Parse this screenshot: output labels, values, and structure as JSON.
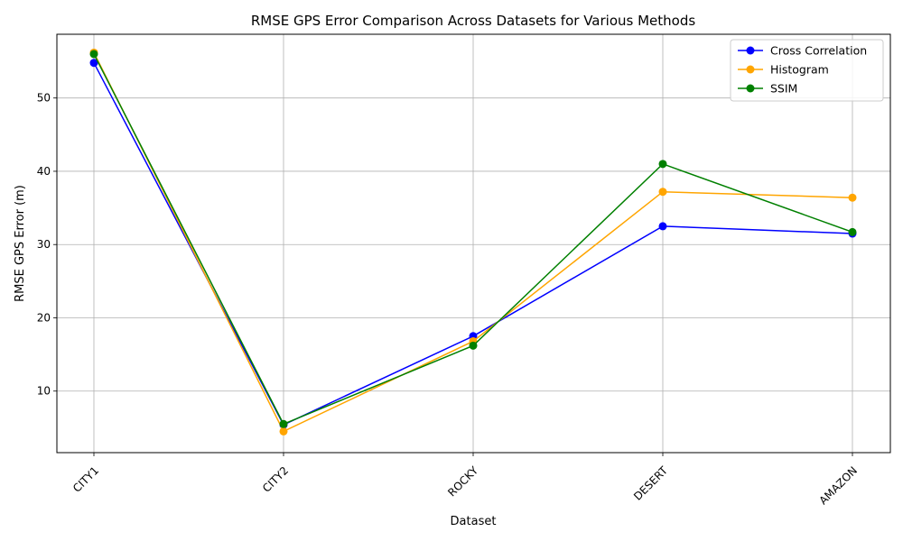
{
  "chart_data": {
    "type": "line",
    "title": "RMSE GPS Error Comparison Across Datasets for Various Methods",
    "xlabel": "Dataset",
    "ylabel": "RMSE GPS Error (m)",
    "categories": [
      "CITY1",
      "CITY2",
      "ROCKY",
      "DESERT",
      "AMAZON"
    ],
    "ylim": [
      1.6,
      58.7
    ],
    "yticks": [
      10,
      20,
      30,
      40,
      50
    ],
    "grid": true,
    "legend_position": "top-right",
    "series": [
      {
        "name": "Cross Correlation",
        "color": "#0000ff",
        "values": [
          54.8,
          5.4,
          17.5,
          32.5,
          31.5
        ]
      },
      {
        "name": "Histogram",
        "color": "#ffa500",
        "values": [
          56.2,
          4.5,
          16.8,
          37.2,
          36.4
        ]
      },
      {
        "name": "SSIM",
        "color": "#008000",
        "values": [
          56.0,
          5.5,
          16.2,
          41.0,
          31.7
        ]
      }
    ]
  }
}
